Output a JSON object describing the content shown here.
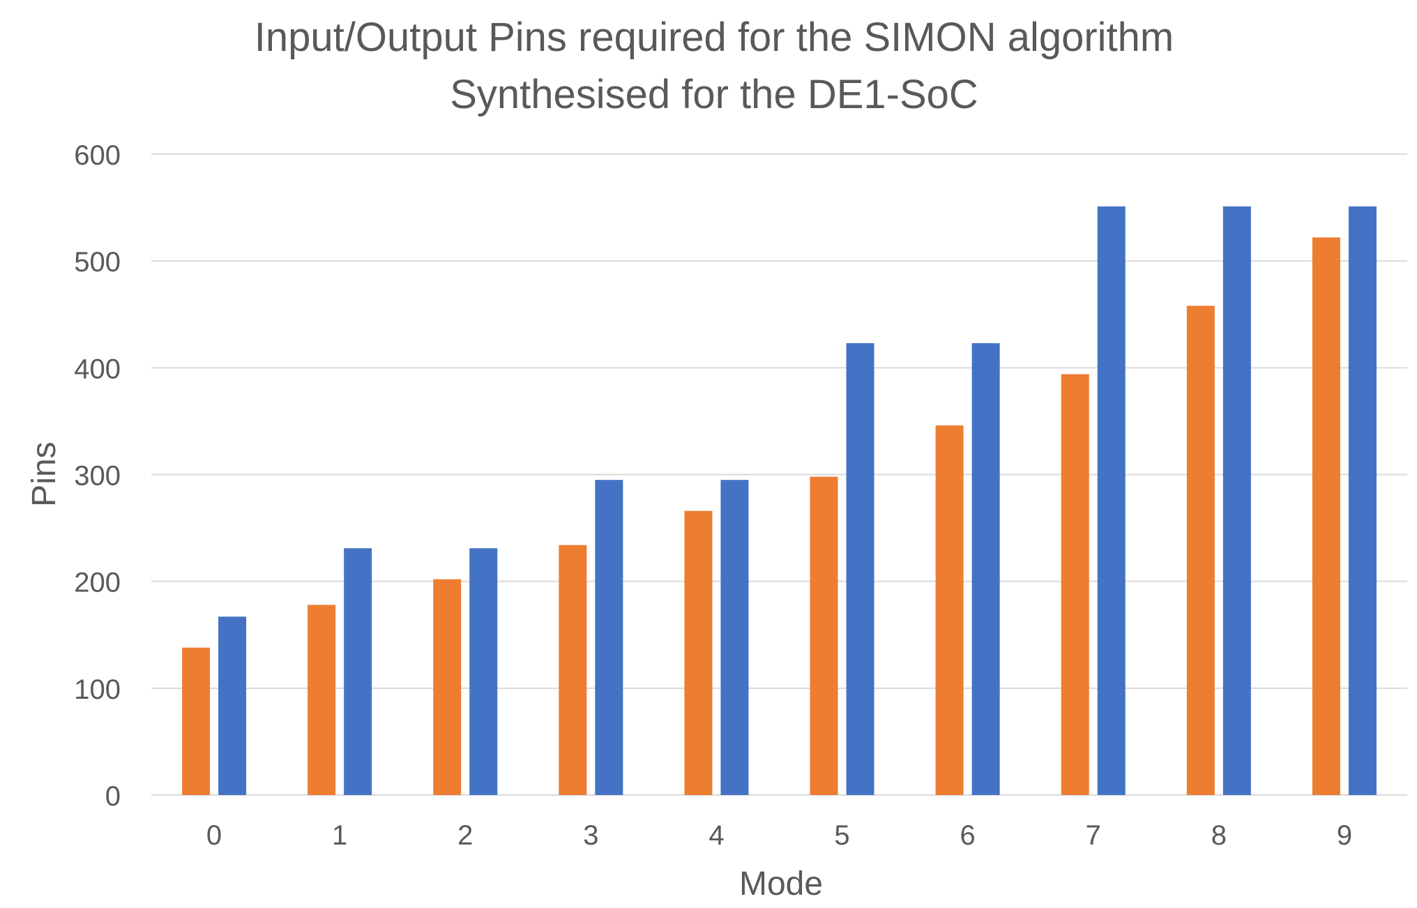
{
  "chart_data": {
    "type": "bar",
    "title": "Input/Output Pins required for the SIMON algorithm",
    "subtitle": "Synthesised for the DE1-SoC",
    "xlabel": "Mode",
    "ylabel": "Pins",
    "categories": [
      "0",
      "1",
      "2",
      "3",
      "4",
      "5",
      "6",
      "7",
      "8",
      "9"
    ],
    "series": [
      {
        "color": "#ED7D31",
        "values": [
          138,
          178,
          202,
          234,
          266,
          298,
          346,
          394,
          458,
          522
        ]
      },
      {
        "color": "#4472C4",
        "values": [
          167,
          231,
          231,
          295,
          295,
          423,
          423,
          551,
          551,
          551
        ]
      }
    ],
    "ylim": [
      0,
      600
    ],
    "yticks": [
      "0",
      "100",
      "200",
      "300",
      "400",
      "500",
      "600"
    ],
    "grid": true,
    "legend": "none",
    "colors": {
      "text": "#595959",
      "gridline": "#D9D9D9",
      "axis": "#D9D9D9"
    }
  }
}
